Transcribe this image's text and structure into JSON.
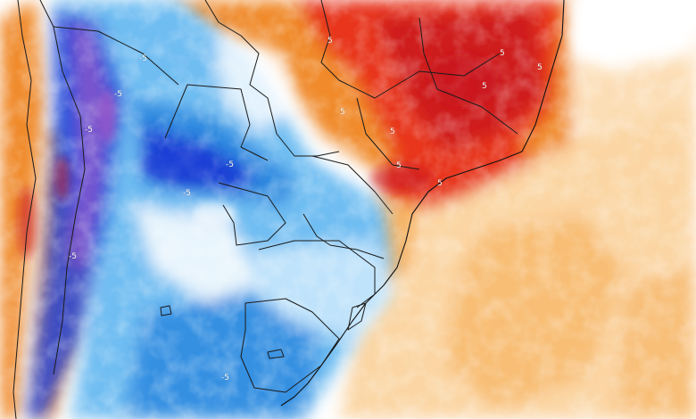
{
  "map": {
    "colors": {
      "deep_red": "#c8141b",
      "red": "#e8341f",
      "orange": "#f08a2a",
      "light_orange": "#f7b566",
      "pale_orange": "#fbd6a4",
      "white": "#ffffff",
      "pale_blue": "#bfe3fb",
      "light_blue": "#6fbdf2",
      "blue": "#2f8be0",
      "deep_blue": "#1f3fd6",
      "purple": "#9a55c8"
    },
    "contour_labels": [
      {
        "text": "-5"
      },
      {
        "text": "-5"
      },
      {
        "text": "-5"
      },
      {
        "text": "-5"
      },
      {
        "text": "-5"
      },
      {
        "text": "-5"
      },
      {
        "text": "-5"
      },
      {
        "text": "5"
      },
      {
        "text": "5"
      },
      {
        "text": "5"
      },
      {
        "text": "5"
      },
      {
        "text": "5"
      },
      {
        "text": "5"
      },
      {
        "text": "5"
      },
      {
        "text": "5"
      }
    ]
  }
}
